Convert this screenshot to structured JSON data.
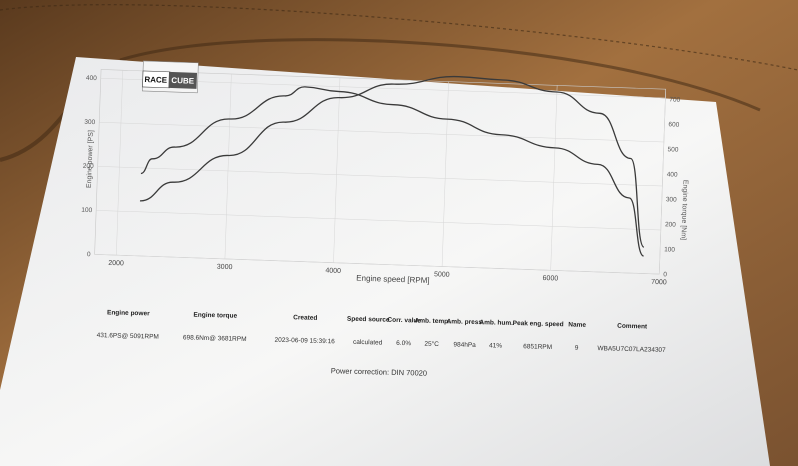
{
  "logo": {
    "line1": "RACE",
    "line2": "CUBE"
  },
  "chart_data": {
    "type": "line",
    "xlabel": "Engine speed [RPM]",
    "ylabel_left": "Engine power [PS]",
    "ylabel_right": "Engine torque [Nm]",
    "x_ticks": [
      2000,
      3000,
      4000,
      5000,
      6000,
      7000
    ],
    "y_left_ticks": [
      0,
      100,
      200,
      300,
      400
    ],
    "y_right_ticks": [
      0,
      100,
      200,
      300,
      400,
      500,
      600,
      700
    ],
    "xlim": [
      1800,
      7000
    ],
    "ylim_left": [
      0,
      420
    ],
    "ylim_right": [
      0,
      740
    ],
    "series": [
      {
        "axis": "left",
        "x": [
          2200,
          2500,
          3000,
          3500,
          4000,
          4500,
          5091,
          5500,
          6000,
          6400,
          6700,
          6850
        ],
        "values": [
          125,
          170,
          235,
          315,
          375,
          410,
          432,
          428,
          405,
          360,
          260,
          60
        ]
      },
      {
        "axis": "right",
        "x": [
          2200,
          2300,
          2500,
          3000,
          3500,
          3681,
          4000,
          4500,
          5000,
          5500,
          6000,
          6400,
          6700,
          6850
        ],
        "values": [
          330,
          390,
          440,
          560,
          660,
          699,
          685,
          640,
          590,
          535,
          490,
          430,
          300,
          70
        ]
      }
    ]
  },
  "summary": {
    "headers": [
      "Engine power",
      "Engine torque",
      "Created",
      "Speed source",
      "Corr. value",
      "Amb. temp.",
      "Amb. press.",
      "Amb. hum.",
      "Peak eng. speed",
      "Name",
      "Comment"
    ],
    "values": [
      "431.6PS@ 5091RPM",
      "698.6Nm@ 3681RPM",
      "2023-06-09 15:39:16",
      "calculated",
      "6.0%",
      "25°C",
      "984hPa",
      "41%",
      "6851RPM",
      "9",
      "WBA5U7C07LA234307"
    ]
  },
  "footer": {
    "correction": "Power correction: DIN 70020"
  }
}
